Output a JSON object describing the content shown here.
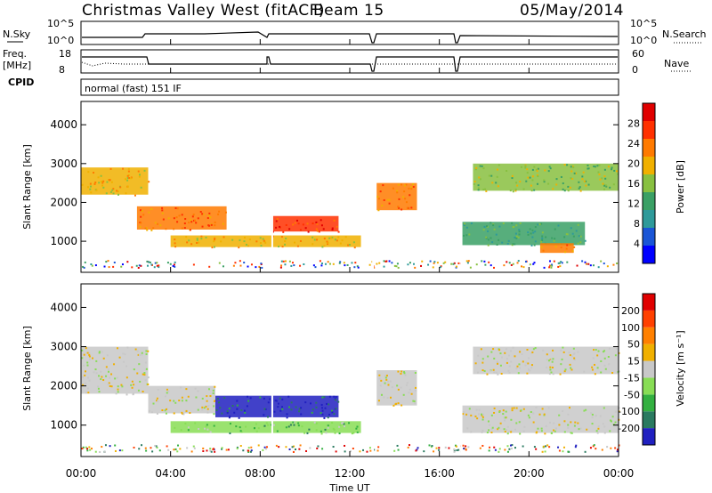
{
  "header": {
    "station": "Christmas Valley West (fitACF)",
    "beam": "Beam 15",
    "date": "05/May/2014"
  },
  "top_panels": {
    "nsky_label": "N.Sky",
    "nsearch_label": "N.Search",
    "nsky_ticks": [
      "10^5",
      "10^0"
    ],
    "freq_label_1": "Freq.",
    "freq_label_2": "[MHz]",
    "freq_ticks": [
      "18",
      "8"
    ],
    "nave_label": "Nave",
    "nave_ticks": [
      "60",
      "0"
    ],
    "cpid_label": "CPID",
    "cpid_value": "normal (fast) 151 IF"
  },
  "power_panel": {
    "ylabel": "Slant Range [km]",
    "yticks": [
      "4000",
      "3000",
      "2000",
      "1000"
    ],
    "colorbar_label": "Power [dB]",
    "colorbar_ticks": [
      "28",
      "24",
      "20",
      "16",
      "12",
      "8",
      "4"
    ],
    "colors": [
      "#0000ff",
      "#1a55d6",
      "#2e9a9a",
      "#3aa065",
      "#88c040",
      "#f0b000",
      "#ff7a00",
      "#ff3000",
      "#e00000"
    ]
  },
  "velocity_panel": {
    "ylabel": "Slant Range [km]",
    "yticks": [
      "4000",
      "3000",
      "2000",
      "1000"
    ],
    "colorbar_label": "Velocity [m s⁻¹]",
    "colorbar_ticks": [
      "200",
      "100",
      "50",
      "15",
      "-15",
      "-50",
      "-100",
      "-200"
    ],
    "colors": [
      "#2020c0",
      "#2a7a60",
      "#33b040",
      "#88dd55",
      "#c8c8c8",
      "#f0b000",
      "#ff8000",
      "#ff4000",
      "#e00000"
    ]
  },
  "x_axis": {
    "ticks": [
      "00:00",
      "04:00",
      "08:00",
      "12:00",
      "16:00",
      "20:00",
      "00:00"
    ],
    "label": "Time UT"
  },
  "chart_data": {
    "type": "heatmap",
    "title": "Christmas Valley West (fitACF)",
    "subtitle": "Beam 15",
    "date": "05/May/2014",
    "xlabel": "Time UT",
    "ylabel": "Slant Range [km]",
    "x_range_hours": [
      0,
      24
    ],
    "y_range_km": [
      200,
      4600
    ],
    "panels": [
      {
        "name": "Power",
        "unit": "dB",
        "colorbar_range": [
          0,
          32
        ],
        "bands": [
          {
            "t0": 0.0,
            "t1": 3.0,
            "r0": 2200,
            "r1": 2900,
            "value": 20
          },
          {
            "t0": 2.5,
            "t1": 6.5,
            "r0": 1300,
            "r1": 1900,
            "value": 24
          },
          {
            "t0": 4.0,
            "t1": 12.5,
            "r0": 850,
            "r1": 1150,
            "value": 20
          },
          {
            "t0": 8.5,
            "t1": 11.5,
            "r0": 1250,
            "r1": 1650,
            "value": 28
          },
          {
            "t0": 13.2,
            "t1": 15.0,
            "r0": 1800,
            "r1": 2500,
            "value": 24
          },
          {
            "t0": 17.0,
            "t1": 22.5,
            "r0": 900,
            "r1": 1500,
            "value": 12
          },
          {
            "t0": 17.5,
            "t1": 24.0,
            "r0": 2300,
            "r1": 3000,
            "value": 16
          },
          {
            "t0": 20.5,
            "t1": 22.0,
            "r0": 700,
            "r1": 950,
            "value": 24
          }
        ]
      },
      {
        "name": "Velocity",
        "unit": "m s-1",
        "colorbar_range": [
          -200,
          200
        ],
        "bands": [
          {
            "t0": 0.0,
            "t1": 3.0,
            "r0": 1800,
            "r1": 3000,
            "value": 0
          },
          {
            "t0": 3.0,
            "t1": 6.0,
            "r0": 1300,
            "r1": 2000,
            "value": 0
          },
          {
            "t0": 4.0,
            "t1": 12.5,
            "r0": 800,
            "r1": 1100,
            "value": -75
          },
          {
            "t0": 6.0,
            "t1": 11.5,
            "r0": 1200,
            "r1": 1750,
            "value": -180
          },
          {
            "t0": 13.2,
            "t1": 15.0,
            "r0": 1500,
            "r1": 2400,
            "value": 0
          },
          {
            "t0": 17.0,
            "t1": 24.0,
            "r0": 800,
            "r1": 1500,
            "value": 0
          },
          {
            "t0": 17.5,
            "t1": 24.0,
            "r0": 2300,
            "r1": 3000,
            "value": 0
          }
        ]
      }
    ]
  }
}
